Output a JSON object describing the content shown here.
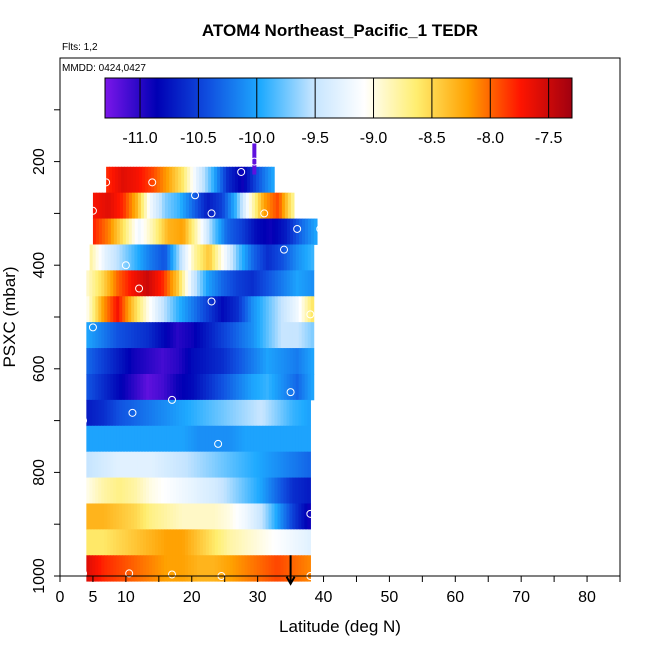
{
  "chart_data": {
    "type": "heatmap",
    "title": "ATOM4 Northeast_Pacific_1 TEDR",
    "annotations": [
      "Flts: 1,2",
      "MMDD: 0424,0427"
    ],
    "xlabel": "Latitude (deg N)",
    "ylabel": "PSXC (mbar)",
    "xlim": [
      0,
      85
    ],
    "ylim": [
      1000,
      0
    ],
    "x_ticks": [
      0,
      5,
      10,
      20,
      30,
      40,
      50,
      60,
      70,
      80
    ],
    "y_ticks": [
      200,
      400,
      600,
      800,
      1000
    ],
    "colorbar": {
      "range": [
        -11.3,
        -7.3
      ],
      "ticks": [
        -11.0,
        -10.5,
        -10.0,
        -9.5,
        -9.0,
        -8.5,
        -8.0,
        -7.5
      ],
      "tick_labels": [
        "-11.0",
        "-10.5",
        "-10.0",
        "-9.5",
        "-9.0",
        "-8.5",
        "-8.0",
        "-7.5"
      ],
      "stops": [
        "#7b16ea",
        "#0000b4",
        "#1050e0",
        "#1eaaff",
        "#c4e4ff",
        "#ffffff",
        "#ffee70",
        "#ffa000",
        "#ff1500",
        "#a00010"
      ]
    },
    "rows": [
      {
        "p": 235,
        "x0": 7,
        "x1": 32.5,
        "v": [
          -7.8,
          -7.6,
          -7.7,
          -7.9,
          -8.2,
          -8.6,
          -9.3,
          -9.9,
          -10.6,
          -10.9,
          -10.4,
          -10.0
        ]
      },
      {
        "p": 285,
        "x0": 5,
        "x1": 35.5,
        "v": [
          -7.7,
          -7.6,
          -7.8,
          -8.3,
          -9.2,
          -9.7,
          -9.9,
          -10.3,
          -10.7,
          -10.5,
          -9.9,
          -9.0,
          -8.2,
          -7.9,
          -8.7
        ]
      },
      {
        "p": 335,
        "x0": 5,
        "x1": 39.0,
        "v": [
          -7.8,
          -8.1,
          -8.6,
          -9.2,
          -8.8,
          -8.3,
          -8.2,
          -8.9,
          -9.7,
          -10.3,
          -10.5,
          -10.8,
          -10.9,
          -10.7,
          -10.3,
          -10.0
        ]
      },
      {
        "p": 385,
        "x0": 4.5,
        "x1": 38.5,
        "v": [
          -8.8,
          -9.3,
          -9.6,
          -9.9,
          -10.2,
          -10.4,
          -9.6,
          -8.8,
          -8.4,
          -9.1,
          -9.8,
          -10.3,
          -10.6,
          -10.4,
          -10.1,
          -9.9
        ]
      },
      {
        "p": 435,
        "x0": 4,
        "x1": 38.5,
        "v": [
          -8.9,
          -8.5,
          -8.0,
          -7.7,
          -7.5,
          -7.8,
          -8.4,
          -9.4,
          -10.0,
          -10.3,
          -10.5,
          -10.6,
          -10.4,
          -10.2,
          -10.0,
          -10.1
        ]
      },
      {
        "p": 485,
        "x0": 4,
        "x1": 38.5,
        "v": [
          -9.0,
          -8.2,
          -7.7,
          -8.4,
          -9.0,
          -9.5,
          -9.9,
          -10.2,
          -10.5,
          -10.8,
          -10.6,
          -10.1,
          -9.8,
          -9.5,
          -9.2,
          -8.6
        ]
      },
      {
        "p": 535,
        "x0": 4,
        "x1": 38.5,
        "v": [
          -10.0,
          -10.2,
          -10.4,
          -10.5,
          -10.6,
          -10.8,
          -11.0,
          -10.9,
          -10.7,
          -10.5,
          -10.3,
          -10.1,
          -9.8,
          -9.5,
          -9.5,
          -9.7
        ]
      },
      {
        "p": 585,
        "x0": 4,
        "x1": 38.5,
        "v": [
          -10.3,
          -10.5,
          -10.7,
          -10.9,
          -11.0,
          -11.1,
          -11.0,
          -10.8,
          -10.7,
          -10.6,
          -10.4,
          -10.2,
          -10.0,
          -10.1,
          -10.2,
          -10.0
        ]
      },
      {
        "p": 635,
        "x0": 4,
        "x1": 38.5,
        "v": [
          -10.4,
          -10.6,
          -10.8,
          -11.0,
          -11.2,
          -11.1,
          -10.9,
          -10.8,
          -10.6,
          -10.4,
          -10.2,
          -10.0,
          -9.9,
          -10.1,
          -10.3,
          -10.0
        ]
      },
      {
        "p": 685,
        "x0": 4,
        "x1": 38.0,
        "v": [
          -10.7,
          -10.6,
          -10.4,
          -10.3,
          -10.2,
          -10.1,
          -10.0,
          -9.9,
          -9.8,
          -9.7,
          -9.6,
          -9.5,
          -9.7,
          -9.9,
          -10.0
        ]
      },
      {
        "p": 735,
        "x0": 4,
        "x1": 38.0,
        "v": [
          -10.0,
          -10.0,
          -10.0,
          -10.0,
          -10.0,
          -10.0,
          -10.0,
          -10.1,
          -10.1,
          -10.1,
          -10.0,
          -10.0,
          -10.0,
          -10.0,
          -10.0
        ]
      },
      {
        "p": 785,
        "x0": 4,
        "x1": 38.0,
        "v": [
          -9.5,
          -9.4,
          -9.3,
          -9.3,
          -9.3,
          -9.4,
          -9.5,
          -9.6,
          -9.7,
          -9.8,
          -9.9,
          -10.0,
          -10.1,
          -10.2,
          -10.3
        ]
      },
      {
        "p": 835,
        "x0": 4,
        "x1": 38.0,
        "v": [
          -9.0,
          -8.8,
          -8.7,
          -8.8,
          -9.0,
          -9.1,
          -9.2,
          -9.3,
          -9.4,
          -9.6,
          -9.8,
          -10.0,
          -10.3,
          -10.6,
          -10.7
        ]
      },
      {
        "p": 885,
        "x0": 4,
        "x1": 38.0,
        "v": [
          -8.3,
          -8.3,
          -8.4,
          -8.5,
          -8.7,
          -8.8,
          -8.9,
          -8.9,
          -8.9,
          -9.0,
          -9.2,
          -9.5,
          -10.0,
          -10.5,
          -10.9
        ]
      },
      {
        "p": 935,
        "x0": 4,
        "x1": 38.0,
        "v": [
          -8.6,
          -8.6,
          -8.5,
          -8.4,
          -8.3,
          -8.2,
          -8.2,
          -8.4,
          -8.6,
          -8.8,
          -8.9,
          -9.0,
          -9.1,
          -9.2,
          -9.3
        ]
      },
      {
        "p": 985,
        "x0": 4,
        "x1": 38.0,
        "v": [
          -7.6,
          -7.8,
          -7.9,
          -8.0,
          -8.1,
          -8.2,
          -8.2,
          -8.3,
          -8.3,
          -8.2,
          -8.1,
          -8.0,
          -7.9,
          -8.0,
          -8.1
        ]
      }
    ],
    "spike": {
      "x": 29.5,
      "p0": 165,
      "p1": 225,
      "v": -11.2
    },
    "circles": [
      {
        "x": 7,
        "p": 240
      },
      {
        "x": 14,
        "p": 240
      },
      {
        "x": 20.5,
        "p": 265
      },
      {
        "x": 27.5,
        "p": 220
      },
      {
        "x": 29.5,
        "p": 200
      },
      {
        "x": 5,
        "p": 295
      },
      {
        "x": 23,
        "p": 300
      },
      {
        "x": 31,
        "p": 300
      },
      {
        "x": 36,
        "p": 330
      },
      {
        "x": 39.5,
        "p": 330
      },
      {
        "x": 34,
        "p": 370
      },
      {
        "x": 10,
        "p": 400
      },
      {
        "x": 12,
        "p": 445
      },
      {
        "x": 23,
        "p": 470
      },
      {
        "x": 38,
        "p": 495
      },
      {
        "x": 5,
        "p": 520
      },
      {
        "x": 17,
        "p": 660
      },
      {
        "x": 35,
        "p": 645
      },
      {
        "x": 11,
        "p": 685
      },
      {
        "x": 3.5,
        "p": 700
      },
      {
        "x": 24,
        "p": 745
      },
      {
        "x": 38,
        "p": 880
      },
      {
        "x": 3.5,
        "p": 995
      },
      {
        "x": 10.5,
        "p": 995
      },
      {
        "x": 17,
        "p": 997
      },
      {
        "x": 24.5,
        "p": 1000
      },
      {
        "x": 38,
        "p": 1000
      }
    ],
    "marker": {
      "x": 35,
      "p0": 960,
      "p1": 1015
    }
  }
}
